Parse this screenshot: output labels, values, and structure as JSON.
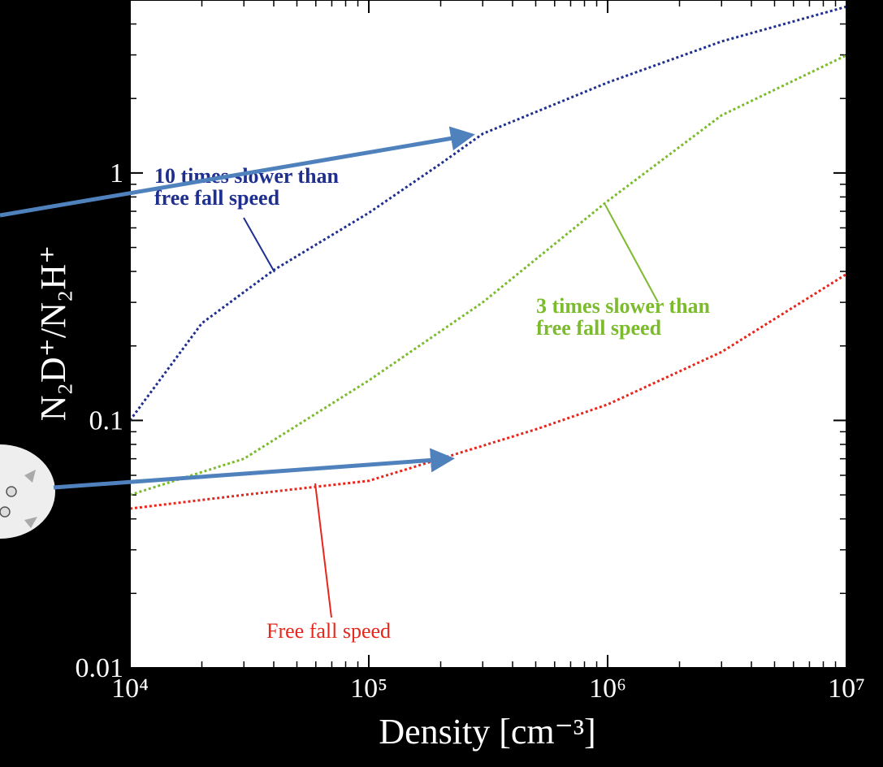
{
  "chart_data": {
    "type": "line",
    "xlabel": "Density [cm⁻³]",
    "ylabel": "N₂D⁺/N₂H⁺",
    "xscale": "log",
    "yscale": "log",
    "xlim": [
      10000,
      10000000
    ],
    "ylim": [
      0.01,
      5
    ],
    "xticks": [
      {
        "value": 10000,
        "label": "10⁴"
      },
      {
        "value": 100000,
        "label": "10⁵"
      },
      {
        "value": 1000000,
        "label": "10⁶"
      },
      {
        "value": 10000000,
        "label": "10⁷"
      }
    ],
    "yticks": [
      0.01,
      0.1,
      1
    ],
    "minor_ticks": true,
    "series": [
      {
        "label_lines": [
          "10 times slower than",
          "free fall speed"
        ],
        "color": "#1f2f8f",
        "x": [
          10000,
          20000,
          40000,
          100000,
          200000,
          300000,
          1000000,
          3000000,
          10000000
        ],
        "values": [
          0.1,
          0.247,
          0.405,
          0.69,
          1.09,
          1.44,
          2.32,
          3.4,
          4.7
        ]
      },
      {
        "label_lines": [
          "3 times slower than",
          "free fall speed"
        ],
        "color": "#7cbb2e",
        "x": [
          10000,
          30000,
          100000,
          300000,
          1000000,
          3000000,
          10000000
        ],
        "values": [
          0.05,
          0.07,
          0.145,
          0.3,
          0.77,
          1.71,
          2.99
        ]
      },
      {
        "label_lines": [
          "Free fall speed"
        ],
        "color": "#e8261c",
        "x": [
          10000,
          30000,
          100000,
          200000,
          500000,
          1000000,
          3000000,
          10000000
        ],
        "values": [
          0.044,
          0.05,
          0.057,
          0.07,
          0.092,
          0.116,
          0.189,
          0.39
        ]
      }
    ]
  }
}
